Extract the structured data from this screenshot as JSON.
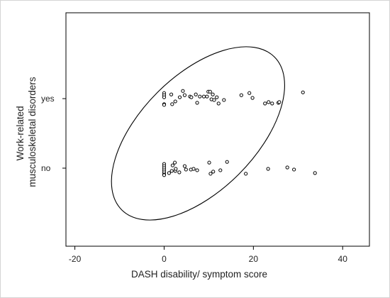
{
  "chart_data": {
    "type": "scatter",
    "xlabel": "DASH disability/ symptom score",
    "ylabel": [
      "Work-related",
      "musculoskeletal disorders"
    ],
    "xlim": [
      -22,
      46
    ],
    "x_ticks": [
      -20,
      0,
      20,
      40
    ],
    "categories": [
      "no",
      "yes"
    ],
    "grid": false,
    "legend": "none",
    "marker_color": "#000000",
    "series": [
      {
        "category": "yes",
        "points": [
          {
            "x": 0,
            "j": 0.08
          },
          {
            "x": 0,
            "j": 0.05
          },
          {
            "x": 0,
            "j": 0.02
          },
          {
            "x": 0,
            "j": -0.08
          },
          {
            "x": 0,
            "j": -0.09
          },
          {
            "x": 1.6,
            "j": 0.06
          },
          {
            "x": 1.8,
            "j": -0.08
          },
          {
            "x": 2.5,
            "j": -0.04
          },
          {
            "x": 3.5,
            "j": 0.02
          },
          {
            "x": 4.2,
            "j": 0.11
          },
          {
            "x": 4.6,
            "j": 0.05
          },
          {
            "x": 5.8,
            "j": 0.03
          },
          {
            "x": 6.1,
            "j": 0.02
          },
          {
            "x": 7.1,
            "j": 0.06
          },
          {
            "x": 7.4,
            "j": -0.06
          },
          {
            "x": 8.0,
            "j": 0.03
          },
          {
            "x": 8.9,
            "j": 0.03
          },
          {
            "x": 9.6,
            "j": 0.03
          },
          {
            "x": 9.9,
            "j": 0.1
          },
          {
            "x": 10.3,
            "j": 0.1
          },
          {
            "x": 10.6,
            "j": -0.01
          },
          {
            "x": 10.9,
            "j": 0.06
          },
          {
            "x": 11.2,
            "j": -0.02
          },
          {
            "x": 11.8,
            "j": 0.02
          },
          {
            "x": 12.2,
            "j": -0.07
          },
          {
            "x": 13.4,
            "j": -0.02
          },
          {
            "x": 17.3,
            "j": 0.05
          },
          {
            "x": 19.1,
            "j": 0.08
          },
          {
            "x": 19.8,
            "j": 0.01
          },
          {
            "x": 22.6,
            "j": -0.07
          },
          {
            "x": 23.4,
            "j": -0.05
          },
          {
            "x": 24.2,
            "j": -0.07
          },
          {
            "x": 25.6,
            "j": -0.06
          },
          {
            "x": 25.8,
            "j": -0.05
          },
          {
            "x": 31.1,
            "j": 0.09
          }
        ]
      },
      {
        "category": "no",
        "points": [
          {
            "x": 0,
            "j": 0.06
          },
          {
            "x": 0,
            "j": 0.03
          },
          {
            "x": 0,
            "j": 0.0
          },
          {
            "x": 0,
            "j": -0.03
          },
          {
            "x": 0,
            "j": -0.06
          },
          {
            "x": 0,
            "j": -0.09
          },
          {
            "x": 0,
            "j": -0.1
          },
          {
            "x": 1.1,
            "j": -0.07
          },
          {
            "x": 1.7,
            "j": -0.04
          },
          {
            "x": 1.9,
            "j": 0.04
          },
          {
            "x": 2.4,
            "j": 0.08
          },
          {
            "x": 2.5,
            "j": -0.04
          },
          {
            "x": 2.6,
            "j": -0.01
          },
          {
            "x": 3.4,
            "j": -0.06
          },
          {
            "x": 4.6,
            "j": 0.03
          },
          {
            "x": 4.9,
            "j": -0.02
          },
          {
            "x": 6.0,
            "j": -0.02
          },
          {
            "x": 6.6,
            "j": -0.01
          },
          {
            "x": 7.4,
            "j": -0.03
          },
          {
            "x": 10.1,
            "j": 0.08
          },
          {
            "x": 10.4,
            "j": -0.08
          },
          {
            "x": 11.0,
            "j": -0.05
          },
          {
            "x": 12.6,
            "j": -0.03
          },
          {
            "x": 14.1,
            "j": 0.09
          },
          {
            "x": 18.3,
            "j": -0.08
          },
          {
            "x": 23.3,
            "j": -0.01
          },
          {
            "x": 27.6,
            "j": 0.01
          },
          {
            "x": 29.1,
            "j": -0.02
          },
          {
            "x": 33.8,
            "j": -0.07
          }
        ]
      }
    ],
    "annotations": [
      {
        "shape": "ellipse",
        "center": {
          "x": 7.6,
          "y": 0.5
        },
        "radii": {
          "x": 24.2,
          "y": 0.83
        },
        "rotation_deg": -45
      }
    ]
  }
}
